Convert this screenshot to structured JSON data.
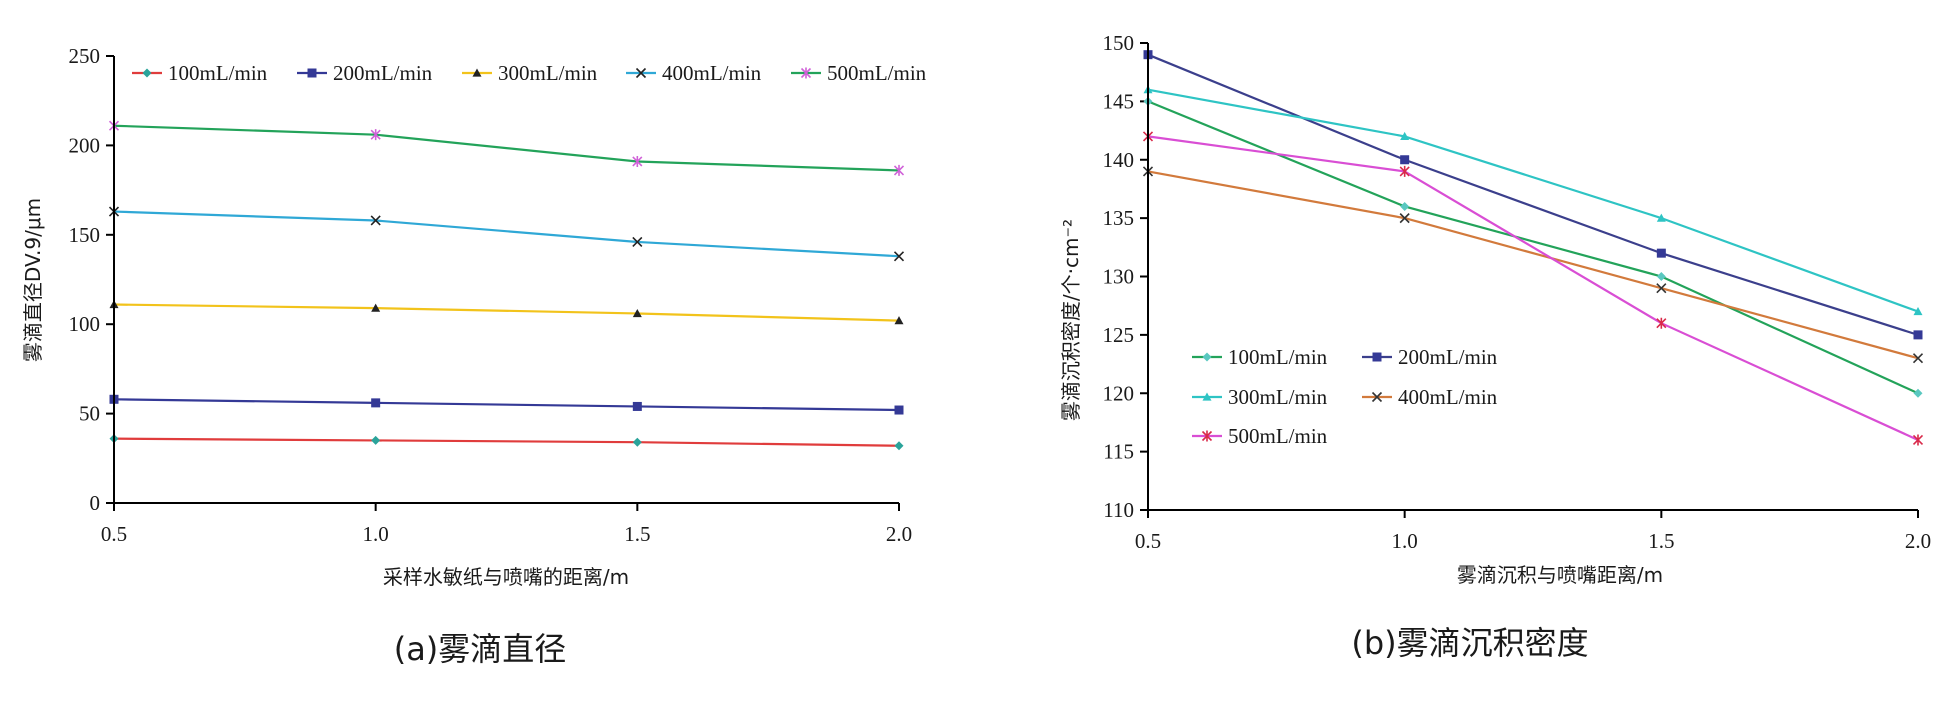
{
  "chart_data": [
    {
      "type": "line",
      "caption": "(a)雾滴直径",
      "xlabel": "采样水敏纸与喷嘴的距离/m",
      "ylabel": "雾滴直径DV.9/μm",
      "x": [
        0.5,
        1.0,
        1.5,
        2.0
      ],
      "x_tick_labels": [
        "0.5",
        "1.0",
        "1.5",
        "2.0"
      ],
      "ylim": [
        0,
        250
      ],
      "y_ticks": [
        0,
        50,
        100,
        150,
        200,
        250
      ],
      "grid": false,
      "legend_position": "top",
      "series": [
        {
          "name": "100mL/min",
          "color": "#e03c3c",
          "marker": "diamond",
          "marker_color": "#2aa39a",
          "values": [
            36,
            35,
            34,
            32
          ]
        },
        {
          "name": "200mL/min",
          "color": "#343996",
          "marker": "square",
          "marker_color": "#343996",
          "values": [
            58,
            56,
            54,
            52
          ]
        },
        {
          "name": "300mL/min",
          "color": "#f2c31b",
          "marker": "triangle",
          "marker_color": "#222222",
          "values": [
            111,
            109,
            106,
            102
          ]
        },
        {
          "name": "400mL/min",
          "color": "#2fa8d6",
          "marker": "x",
          "marker_color": "#222222",
          "values": [
            163,
            158,
            146,
            138
          ]
        },
        {
          "name": "500mL/min",
          "color": "#23a35a",
          "marker": "star",
          "marker_color": "#d062d8",
          "values": [
            211,
            206,
            191,
            186
          ]
        }
      ]
    },
    {
      "type": "line",
      "caption": "(b)雾滴沉积密度",
      "xlabel": "雾滴沉积与喷嘴距离/m",
      "ylabel": "雾滴沉积密度/个·cm⁻²",
      "x": [
        0.5,
        1.0,
        1.5,
        2.0
      ],
      "x_tick_labels": [
        "0.5",
        "1.0",
        "1.5",
        "2.0"
      ],
      "ylim": [
        110,
        150
      ],
      "y_ticks": [
        110,
        115,
        120,
        125,
        130,
        135,
        140,
        145,
        150
      ],
      "grid": false,
      "legend_position": "bottom-left",
      "series": [
        {
          "name": "100mL/min",
          "color": "#23a35a",
          "marker": "diamond",
          "marker_color": "#5ac8c0",
          "values": [
            145,
            136,
            130,
            120
          ]
        },
        {
          "name": "200mL/min",
          "color": "#3b3f8c",
          "marker": "square",
          "marker_color": "#343996",
          "values": [
            149,
            140,
            132,
            125
          ]
        },
        {
          "name": "300mL/min",
          "color": "#2ec4c4",
          "marker": "triangle",
          "marker_color": "#2ec4c4",
          "values": [
            146,
            142,
            135,
            127
          ]
        },
        {
          "name": "400mL/min",
          "color": "#d27a3c",
          "marker": "x",
          "marker_color": "#333333",
          "values": [
            139,
            135,
            129,
            123
          ]
        },
        {
          "name": "500mL/min",
          "color": "#d94ed4",
          "marker": "star",
          "marker_color": "#d92a4a",
          "values": [
            142,
            139,
            126,
            116
          ]
        }
      ]
    }
  ]
}
